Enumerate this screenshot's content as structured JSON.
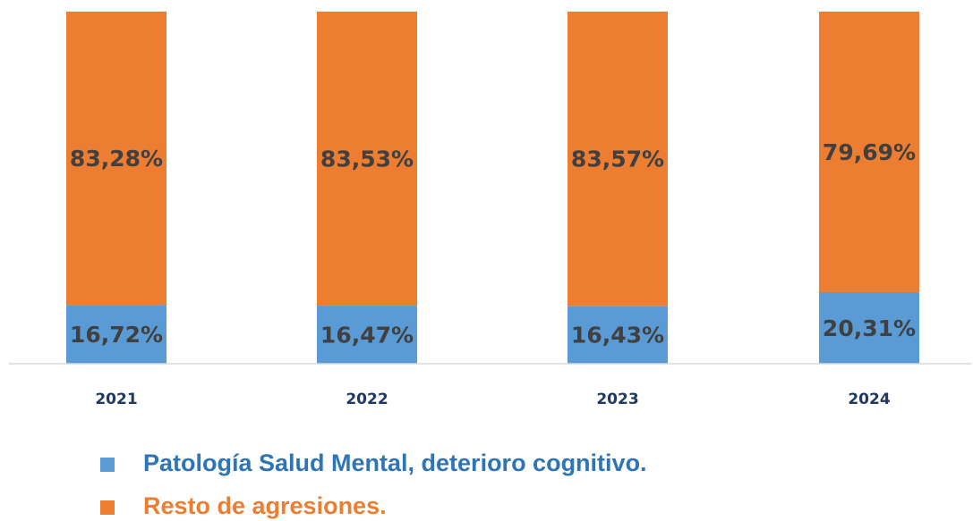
{
  "chart_data": {
    "type": "stacked_bar",
    "categories": [
      "2021",
      "2022",
      "2023",
      "2024"
    ],
    "series": [
      {
        "name": "Patología Salud Mental, deterioro cognitivo.",
        "color": "#5b9bd5",
        "values": [
          16.72,
          16.47,
          16.43,
          20.31
        ],
        "value_labels": [
          "16,72%",
          "16,47%",
          "16,43%",
          "20,31%"
        ]
      },
      {
        "name": "Resto de agresiones.",
        "color": "#ed7d31",
        "values": [
          83.28,
          83.53,
          83.57,
          79.69
        ],
        "value_labels": [
          "83,28%",
          "83,53%",
          "83,57%",
          "79,69%"
        ]
      }
    ]
  }
}
